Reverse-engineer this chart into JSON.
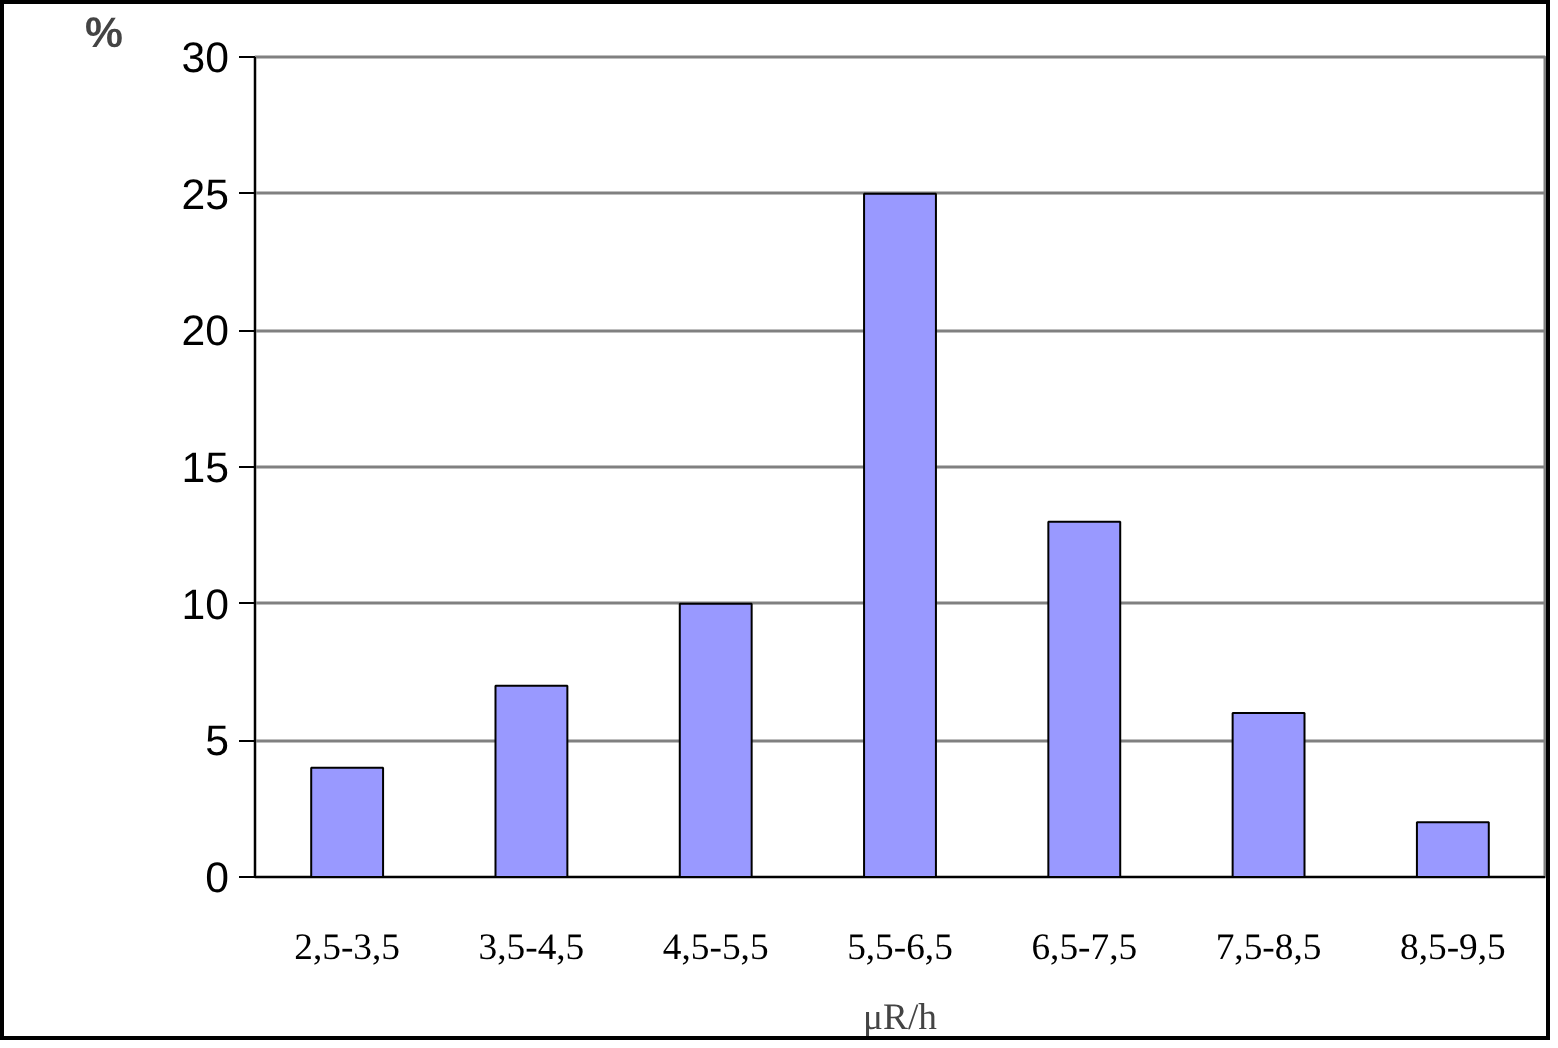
{
  "chart_data": {
    "type": "bar",
    "ylabel": "%",
    "xlabel": "μR/h",
    "categories": [
      "2,5-3,5",
      "3,5-4,5",
      "4,5-5,5",
      "5,5-6,5",
      "6,5-7,5",
      "7,5-8,5",
      "8,5-9,5"
    ],
    "values": [
      4,
      7,
      10,
      25,
      13,
      6,
      2
    ],
    "color": "#9999ff",
    "ylim": [
      0,
      30
    ],
    "yticks": [
      0,
      5,
      10,
      15,
      20,
      25,
      30
    ],
    "grid": "y"
  }
}
